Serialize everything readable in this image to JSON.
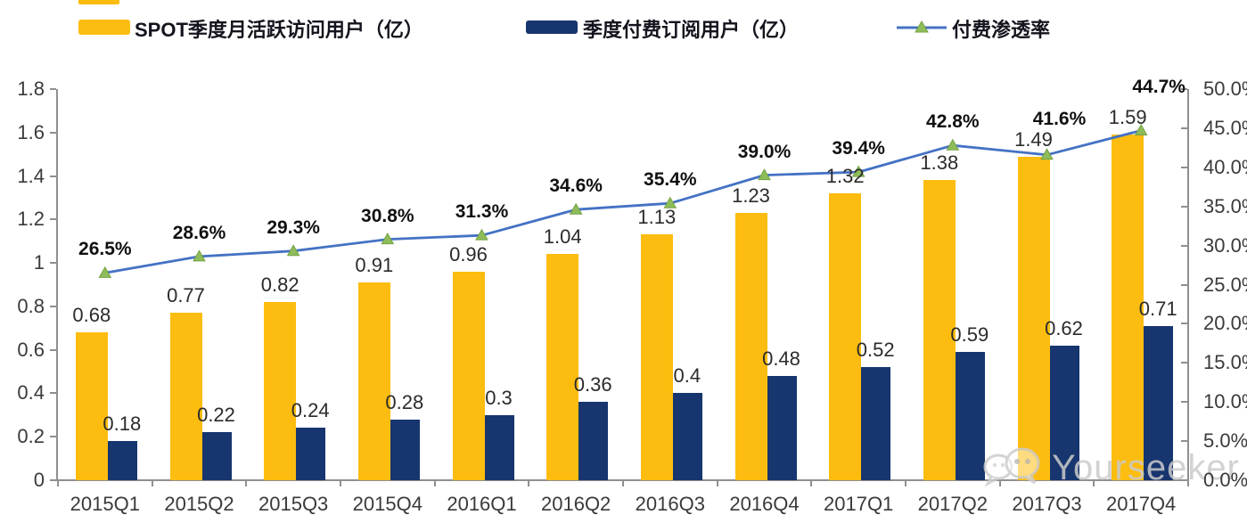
{
  "legend": {
    "items": [
      {
        "label": "SPOT季度月活跃访问用户（亿）",
        "swatch_color": "#FCBD10"
      },
      {
        "label": "季度付费订阅用户（亿）",
        "swatch_color": "#17356E"
      },
      {
        "label": "付费渗透率",
        "line_color": "#4472C4",
        "marker_color": "#8FBC5A"
      }
    ]
  },
  "chart_data": {
    "type": "bar",
    "subtype": "combo-bar-line-dual-axis",
    "categories": [
      "2015Q1",
      "2015Q2",
      "2015Q3",
      "2015Q4",
      "2016Q1",
      "2016Q2",
      "2016Q3",
      "2016Q4",
      "2017Q1",
      "2017Q2",
      "2017Q3",
      "2017Q4"
    ],
    "series": [
      {
        "name": "SPOT季度月活跃访问用户（亿）",
        "type": "bar",
        "axis": "left",
        "color": "#FCBD10",
        "values": [
          0.68,
          0.77,
          0.82,
          0.91,
          0.96,
          1.04,
          1.13,
          1.23,
          1.32,
          1.38,
          1.49,
          1.59
        ],
        "labels": [
          "0.68",
          "0.77",
          "0.82",
          "0.91",
          "0.96",
          "1.04",
          "1.13",
          "1.23",
          "1.32",
          "1.38",
          "1.49",
          "1.59"
        ]
      },
      {
        "name": "季度付费订阅用户（亿）",
        "type": "bar",
        "axis": "left",
        "color": "#17356E",
        "values": [
          0.18,
          0.22,
          0.24,
          0.28,
          0.3,
          0.36,
          0.4,
          0.48,
          0.52,
          0.59,
          0.62,
          0.71
        ],
        "labels": [
          "0.18",
          "0.22",
          "0.24",
          "0.28",
          "0.3",
          "0.36",
          "0.4",
          "0.48",
          "0.52",
          "0.59",
          "0.62",
          "0.71"
        ]
      },
      {
        "name": "付费渗透率",
        "type": "line",
        "axis": "right",
        "color": "#4472C4",
        "marker": "triangle",
        "marker_color": "#8FBC5A",
        "values": [
          26.5,
          28.6,
          29.3,
          30.8,
          31.3,
          34.6,
          35.4,
          39.0,
          39.4,
          42.8,
          41.6,
          44.7
        ],
        "labels": [
          "26.5%",
          "28.6%",
          "29.3%",
          "30.8%",
          "31.3%",
          "34.6%",
          "35.4%",
          "39.0%",
          "39.4%",
          "42.8%",
          "41.6%",
          "44.7%"
        ]
      }
    ],
    "left_axis": {
      "min": 0,
      "max": 1.8,
      "tick_labels": [
        "1.8",
        "1.6",
        "1.4",
        "1.2",
        "1",
        "0.8",
        "0.6",
        "0.4",
        "0.2",
        "0"
      ]
    },
    "right_axis": {
      "min": 0,
      "max": 50,
      "tick_labels": [
        "50.0%",
        "45.0%",
        "40.0%",
        "35.0%",
        "30.0%",
        "25.0%",
        "20.0%",
        "15.0%",
        "10.0%",
        "5.0%",
        "0.0%"
      ]
    },
    "grid": false,
    "legend_position": "top",
    "title": ""
  },
  "watermark": {
    "text": "Yourseeker",
    "icon": "wechat-icon",
    "color": "#CBCBCB"
  },
  "colors": {
    "axis": "#8F8F8F",
    "tick_text": "#3A3A3A",
    "bar_value_text": "#2B2B2B",
    "pct_text": "#101010"
  }
}
